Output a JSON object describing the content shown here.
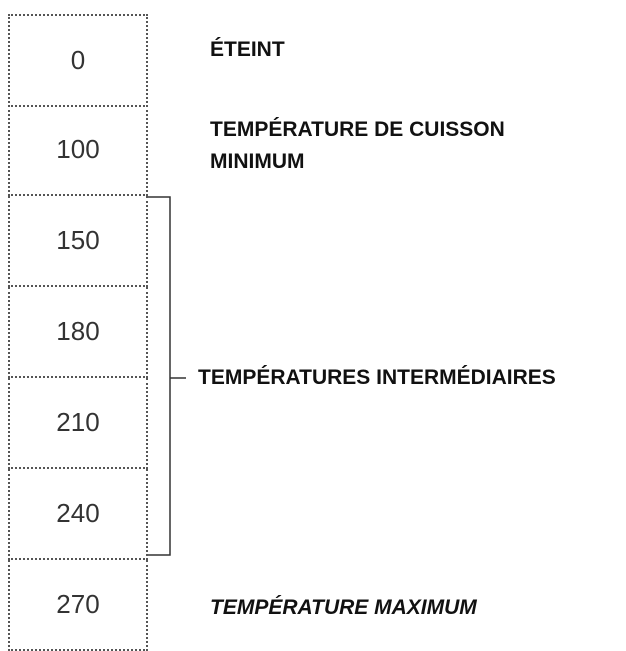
{
  "settings": [
    "0",
    "100",
    "150",
    "180",
    "210",
    "240",
    "270"
  ],
  "labels": {
    "off": "ÉTEINT",
    "minimum": "TEMPÉRATURE DE CUISSON MINIMUM",
    "intermediate": "TEMPÉRATURES INTERMÉDIAIRES",
    "maximum": "TEMPÉRATURE MAXIMUM"
  }
}
